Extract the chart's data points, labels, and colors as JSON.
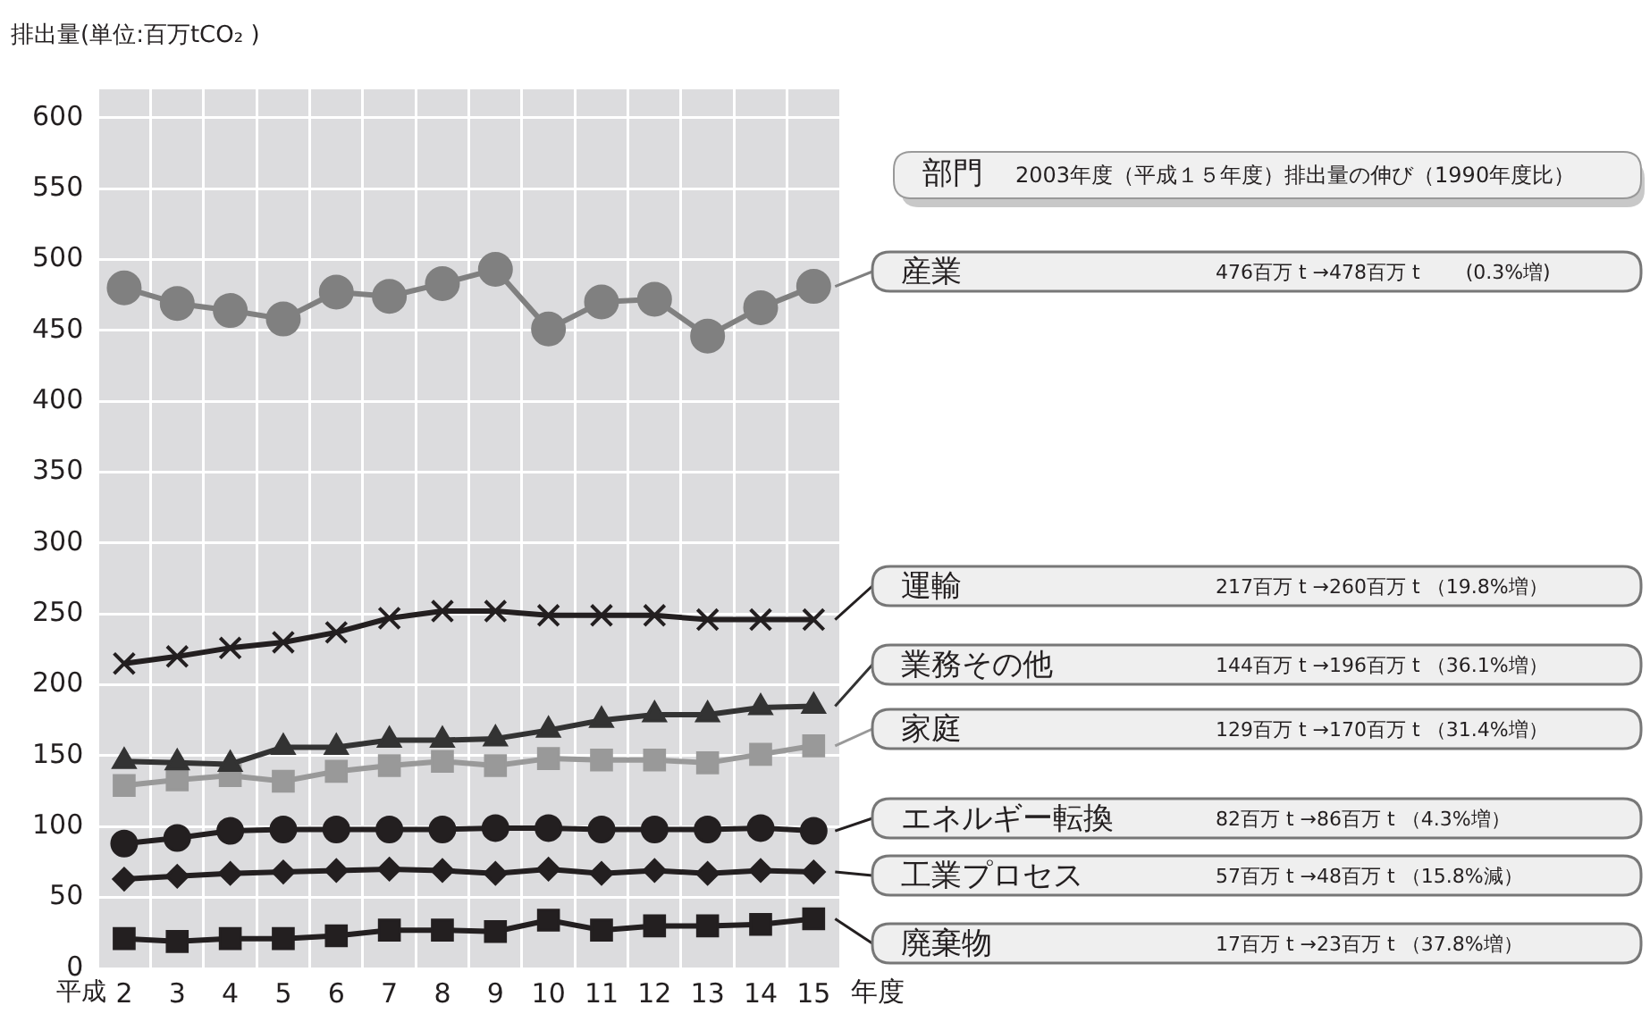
{
  "chart_data": {
    "type": "line",
    "ylabel": "排出量(単位:百万tCO₂ )",
    "xlabel": "年度",
    "legend_title": "部門",
    "annotations": [
      "平成",
      "2003年度（平成１５年度）排出量の伸び（1990年度比）",
      "476百万 t →478百万 t 　　(0.3%増)",
      "217百万 t →260百万 t （19.8%増）",
      "144百万 t →196百万 t （36.1%増）",
      "129百万 t →170百万 t （31.4%増）",
      "82百万 t →86百万 t （4.3%増）",
      "57百万 t →48百万 t （15.8%減）",
      "17百万 t →23百万 t （37.8%増）"
    ],
    "categories": [
      "2",
      "3",
      "4",
      "5",
      "6",
      "7",
      "8",
      "9",
      "10",
      "11",
      "12",
      "13",
      "14",
      "15"
    ],
    "ylim": [
      0,
      620
    ],
    "yticks": [
      0,
      50,
      100,
      150,
      200,
      250,
      300,
      350,
      400,
      450,
      500,
      550,
      600
    ],
    "grid": true,
    "legend": "right",
    "line_style": "solid",
    "series": [
      {
        "name": "産業",
        "color": "#808080",
        "marker": "circle",
        "values": [
          480,
          469,
          464,
          458,
          477,
          474,
          483,
          493,
          451,
          470,
          472,
          446,
          466,
          481
        ]
      },
      {
        "name": "運輸",
        "color": "#231f20",
        "marker": "cross",
        "values": [
          215,
          220,
          226,
          230,
          237,
          247,
          252,
          252,
          249,
          249,
          249,
          246,
          246,
          246
        ]
      },
      {
        "name": "業務その他",
        "color": "#333333",
        "marker": "triangle",
        "values": [
          146,
          145,
          144,
          156,
          156,
          161,
          161,
          162,
          168,
          175,
          179,
          179,
          184,
          185
        ]
      },
      {
        "name": "家庭",
        "color": "#999999",
        "marker": "square",
        "values": [
          129,
          133,
          136,
          132,
          139,
          143,
          146,
          143,
          148,
          147,
          147,
          145,
          151,
          157
        ]
      },
      {
        "name": "エネルギー転換",
        "color": "#231f20",
        "marker": "circle",
        "values": [
          88,
          92,
          97,
          98,
          98,
          98,
          98,
          99,
          99,
          98,
          98,
          98,
          99,
          97
        ]
      },
      {
        "name": "工業プロセス",
        "color": "#231f20",
        "marker": "diamond",
        "values": [
          63,
          65,
          67,
          68,
          69,
          70,
          69,
          67,
          70,
          67,
          69,
          67,
          69,
          68
        ]
      },
      {
        "name": "廃棄物",
        "color": "#231f20",
        "marker": "square",
        "values": [
          21,
          19,
          21,
          21,
          23,
          27,
          27,
          26,
          34,
          27,
          30,
          30,
          31,
          35
        ]
      }
    ]
  }
}
